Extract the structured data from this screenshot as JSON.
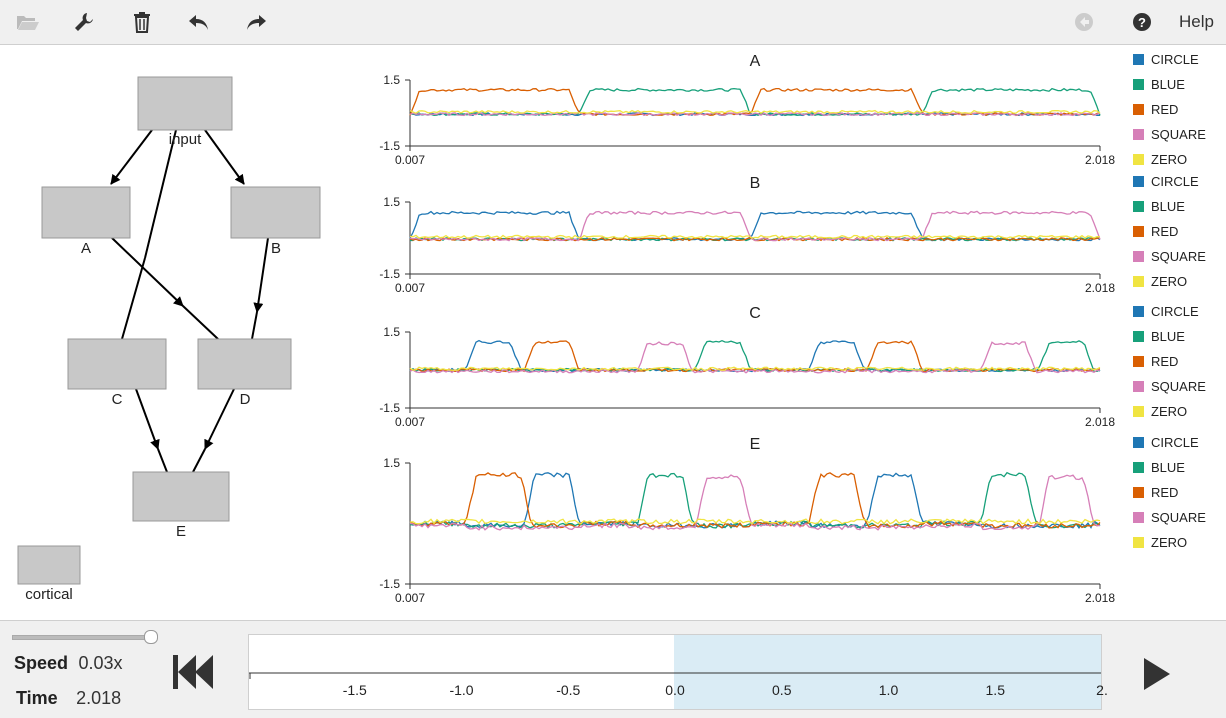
{
  "toolbar": {
    "icons": [
      "folder-open-icon",
      "wrench-icon",
      "trash-icon",
      "undo-icon",
      "redo-icon"
    ],
    "right_icons": [
      "back-circle-icon",
      "help-circle-icon"
    ],
    "help_label": "Help"
  },
  "network": {
    "nodes": [
      {
        "id": "input",
        "label": "input"
      },
      {
        "id": "A",
        "label": "A"
      },
      {
        "id": "B",
        "label": "B"
      },
      {
        "id": "C",
        "label": "C"
      },
      {
        "id": "D",
        "label": "D"
      },
      {
        "id": "E",
        "label": "E"
      },
      {
        "id": "cortical",
        "label": "cortical"
      }
    ],
    "edges": [
      {
        "from": "input",
        "to": "A"
      },
      {
        "from": "input",
        "to": "B"
      },
      {
        "from": "input",
        "to": "C"
      },
      {
        "from": "A",
        "to": "D"
      },
      {
        "from": "B",
        "to": "D"
      },
      {
        "from": "C",
        "to": "E"
      },
      {
        "from": "D",
        "to": "E"
      }
    ]
  },
  "legend_colors": {
    "CIRCLE": "#1f77b4",
    "BLUE": "#17a07a",
    "RED": "#d95f02",
    "SQUARE": "#d67fb8",
    "ZERO": "#f0e442"
  },
  "chart_data": [
    {
      "type": "line",
      "title": "A",
      "ylim": [
        -1.5,
        1.5
      ],
      "ytick_labels": [
        "1.5",
        "-1.5"
      ],
      "xlim": [
        0.007,
        2.018
      ],
      "xtick_labels": [
        "0.007",
        "2.018"
      ],
      "series": [
        {
          "name": "CIRCLE"
        },
        {
          "name": "BLUE"
        },
        {
          "name": "RED"
        },
        {
          "name": "SQUARE"
        },
        {
          "name": "ZERO"
        }
      ],
      "description_segments": [
        [
          0.007,
          0.5,
          "RED"
        ],
        [
          0.5,
          1.0,
          "BLUE"
        ],
        [
          1.0,
          1.5,
          "RED"
        ],
        [
          1.5,
          2.018,
          "BLUE"
        ]
      ]
    },
    {
      "type": "line",
      "title": "B",
      "ylim": [
        -1.5,
        1.5
      ],
      "ytick_labels": [
        "1.5",
        "-1.5"
      ],
      "xlim": [
        0.007,
        2.018
      ],
      "xtick_labels": [
        "0.007",
        "2.018"
      ],
      "series": [
        {
          "name": "CIRCLE"
        },
        {
          "name": "BLUE"
        },
        {
          "name": "RED"
        },
        {
          "name": "SQUARE"
        },
        {
          "name": "ZERO"
        }
      ],
      "description_segments": [
        [
          0.007,
          0.5,
          "CIRCLE"
        ],
        [
          0.5,
          1.0,
          "SQUARE"
        ],
        [
          1.0,
          1.5,
          "CIRCLE"
        ],
        [
          1.5,
          2.018,
          "SQUARE"
        ]
      ]
    },
    {
      "type": "line",
      "title": "C",
      "ylim": [
        -1.5,
        1.5
      ],
      "ytick_labels": [
        "1.5",
        "-1.5"
      ],
      "xlim": [
        0.007,
        2.018
      ],
      "xtick_labels": [
        "0.007",
        "2.018"
      ],
      "series": [
        {
          "name": "CIRCLE"
        },
        {
          "name": "BLUE"
        },
        {
          "name": "RED"
        },
        {
          "name": "SQUARE"
        },
        {
          "name": "ZERO"
        }
      ],
      "description_segments": [
        [
          0.17,
          0.33,
          "CIRCLE"
        ],
        [
          0.34,
          0.5,
          "RED"
        ],
        [
          0.67,
          0.83,
          "SQUARE"
        ],
        [
          0.84,
          1.0,
          "BLUE"
        ],
        [
          1.17,
          1.33,
          "CIRCLE"
        ],
        [
          1.34,
          1.5,
          "RED"
        ],
        [
          1.67,
          1.83,
          "SQUARE"
        ],
        [
          1.84,
          2.0,
          "BLUE"
        ]
      ]
    },
    {
      "type": "line",
      "title": "E",
      "ylim": [
        -1.5,
        1.5
      ],
      "ytick_labels": [
        "1.5",
        "-1.5"
      ],
      "xlim": [
        0.007,
        2.018
      ],
      "xtick_labels": [
        "0.007",
        "2.018"
      ],
      "series": [
        {
          "name": "CIRCLE"
        },
        {
          "name": "BLUE"
        },
        {
          "name": "RED"
        },
        {
          "name": "SQUARE"
        },
        {
          "name": "ZERO"
        }
      ],
      "description_segments": [
        [
          0.17,
          0.36,
          "RED"
        ],
        [
          0.34,
          0.5,
          "CIRCLE"
        ],
        [
          0.67,
          0.83,
          "BLUE"
        ],
        [
          0.84,
          1.0,
          "SQUARE"
        ],
        [
          1.17,
          1.33,
          "RED"
        ],
        [
          1.34,
          1.5,
          "CIRCLE"
        ],
        [
          1.67,
          1.83,
          "BLUE"
        ],
        [
          1.84,
          2.0,
          "SQUARE"
        ]
      ]
    }
  ],
  "controls": {
    "speed_label": "Speed",
    "speed_value": "0.03x",
    "time_label": "Time",
    "time_value": "2.018",
    "speed_slider_fraction": 1.0,
    "timeline_ticks": [
      "-1.5",
      "-1.0",
      "-0.5",
      "0.0",
      "0.5",
      "1.0",
      "1.5",
      "2."
    ],
    "timeline_tick_values": [
      -1.5,
      -1.0,
      -0.5,
      0.0,
      0.5,
      1.0,
      1.5,
      2.0
    ]
  }
}
